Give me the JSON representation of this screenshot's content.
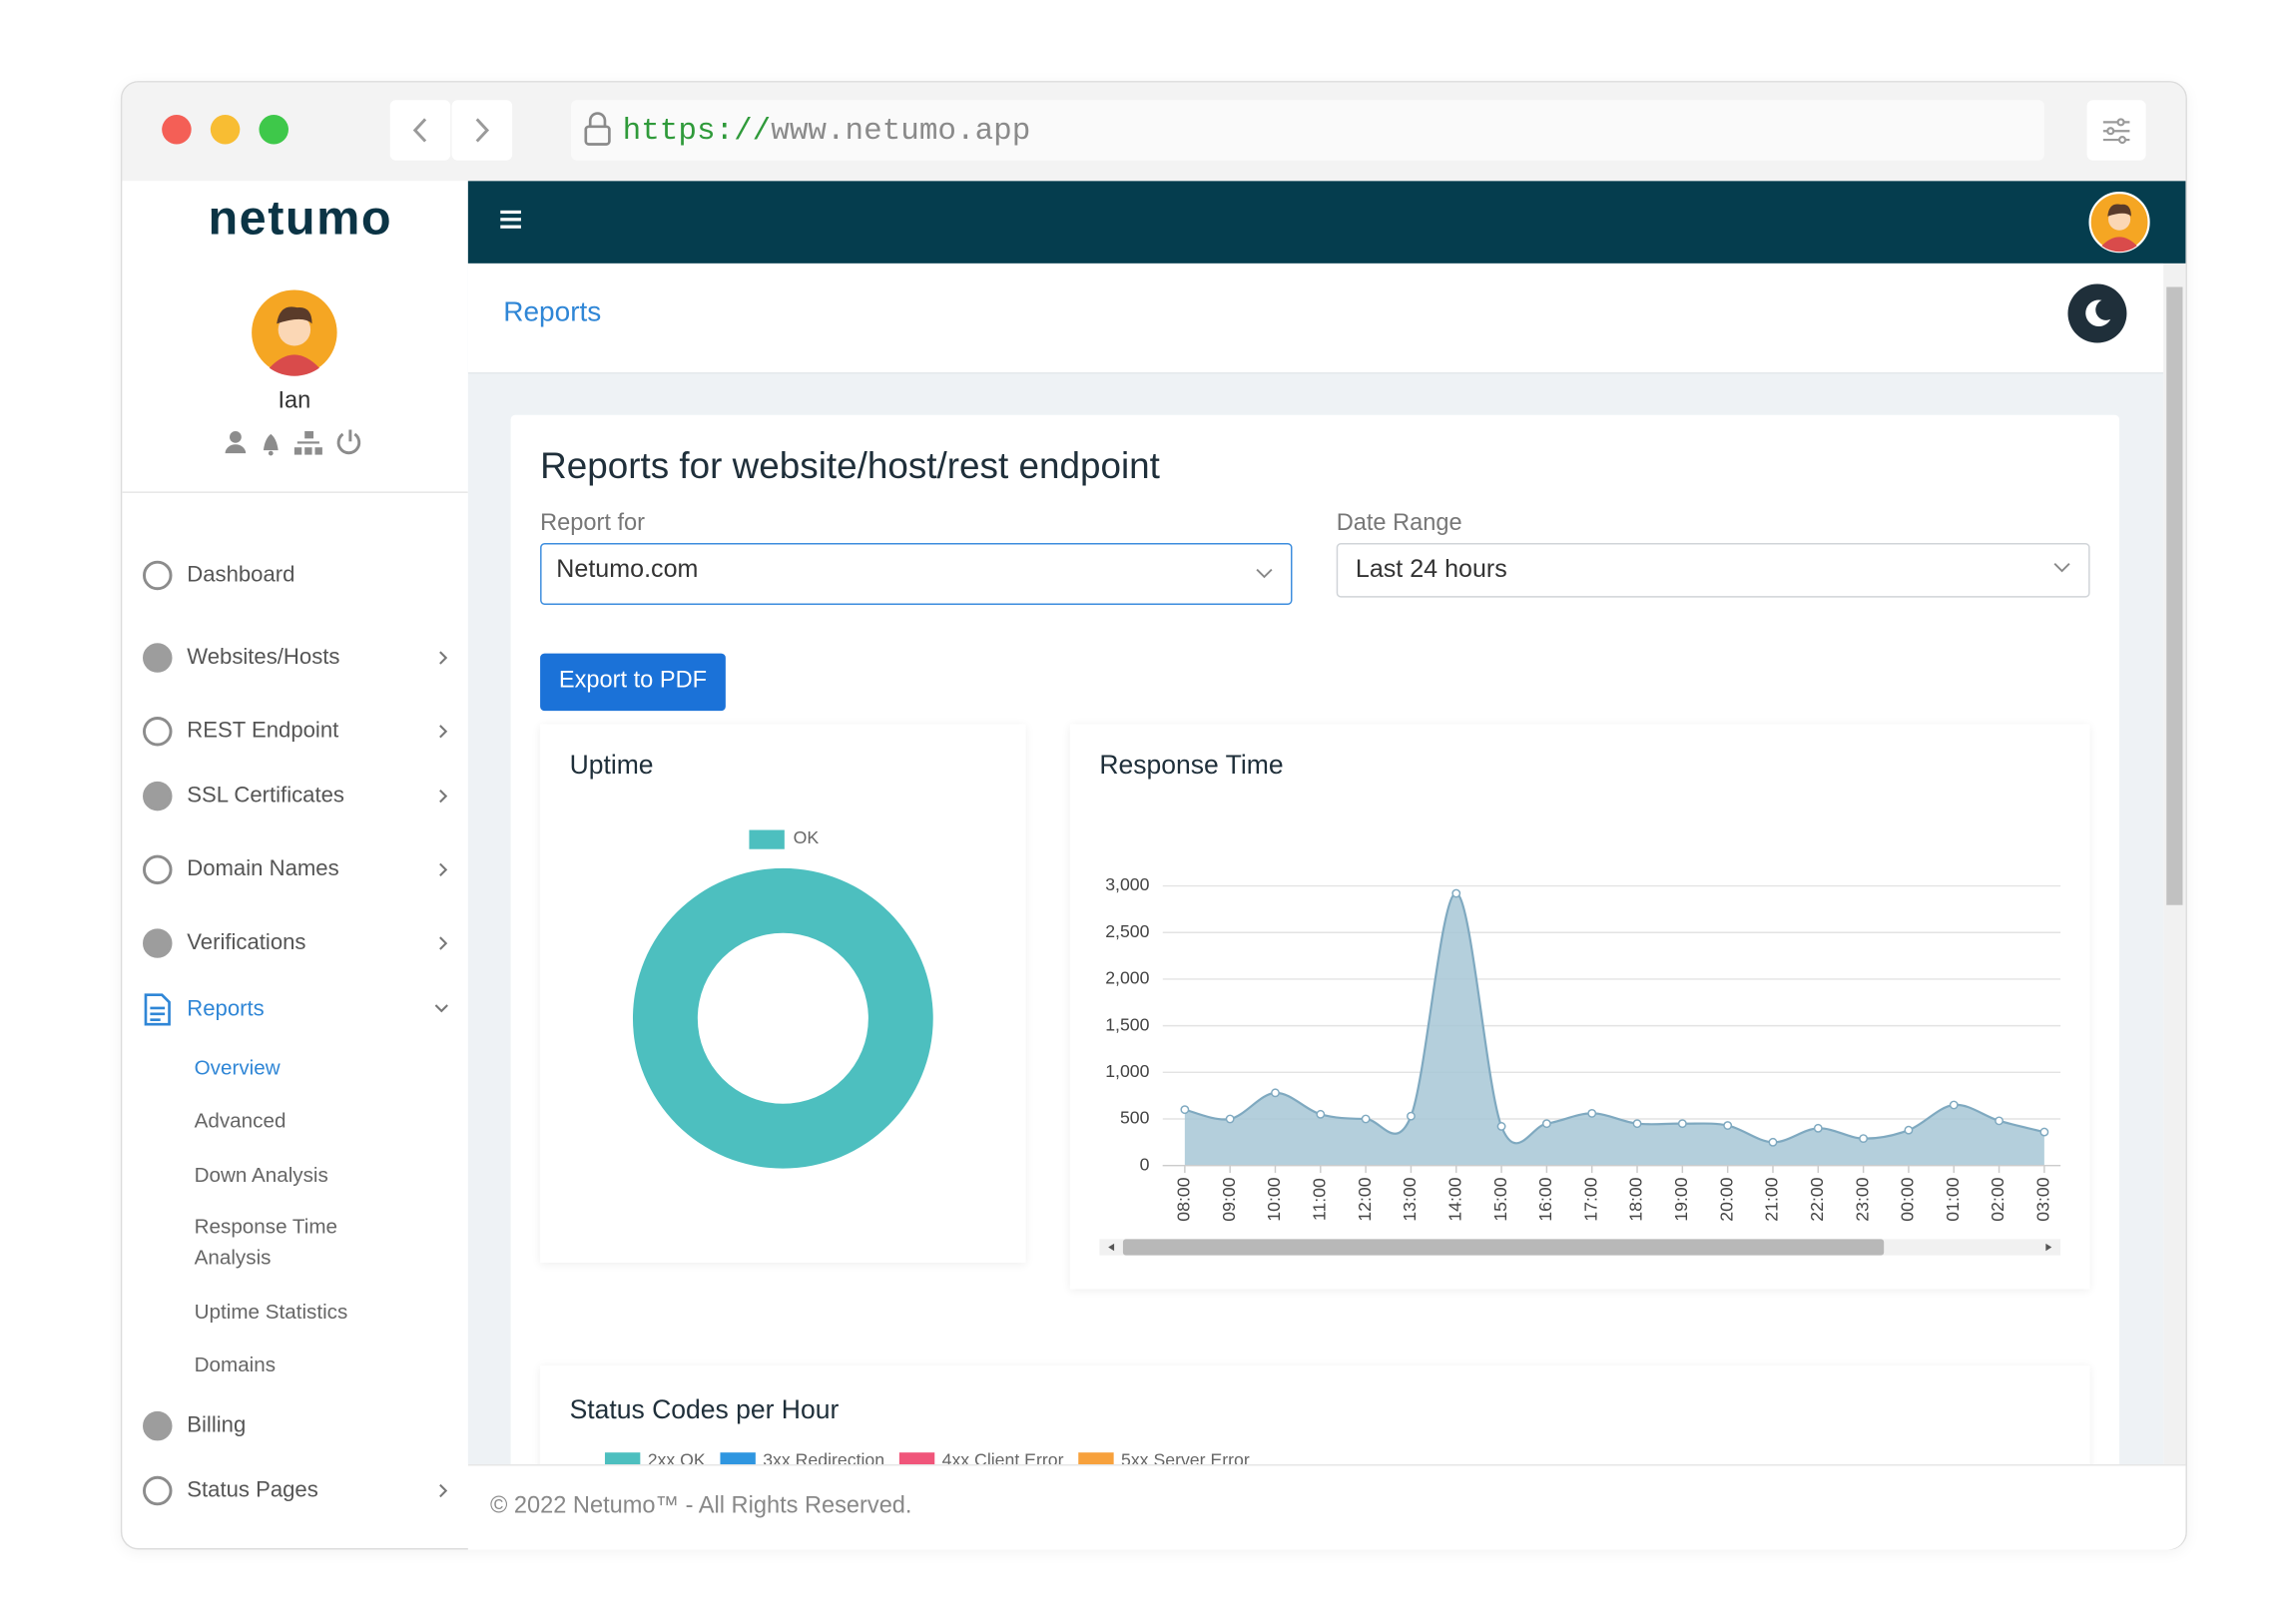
{
  "browser": {
    "url_scheme": "https://",
    "url_host": "www.netumo.app"
  },
  "brand": "netumo",
  "user": {
    "name": "Ian"
  },
  "nav": [
    {
      "label": "Dashboard"
    },
    {
      "label": "Websites/Hosts",
      "submenu": true
    },
    {
      "label": "REST Endpoint",
      "submenu": true
    },
    {
      "label": "SSL Certificates",
      "submenu": true
    },
    {
      "label": "Domain Names",
      "submenu": true
    },
    {
      "label": "Verifications",
      "submenu": true
    },
    {
      "label": "Reports",
      "submenu": true,
      "active": true,
      "children": [
        "Overview",
        "Advanced",
        "Down Analysis",
        "Response Time Analysis",
        "Uptime Statistics",
        "Domains"
      ]
    },
    {
      "label": "Billing"
    },
    {
      "label": "Status Pages",
      "submenu": true
    }
  ],
  "breadcrumb": "Reports",
  "card": {
    "title": "Reports for website/host/rest endpoint",
    "report_for_label": "Report for",
    "report_for_value": "Netumo.com",
    "date_range_label": "Date Range",
    "date_range_value": "Last 24 hours",
    "export_button": "Export to PDF"
  },
  "footer": "© 2022 Netumo™ - All Rights Reserved.",
  "chart_data": [
    {
      "type": "pie",
      "title": "Uptime",
      "donut": true,
      "categories": [
        "OK"
      ],
      "values": [
        100
      ],
      "colors": [
        "#4dbfbf"
      ]
    },
    {
      "type": "area",
      "title": "Response Time",
      "categories": [
        "08:00",
        "09:00",
        "10:00",
        "11:00",
        "12:00",
        "13:00",
        "14:00",
        "15:00",
        "16:00",
        "17:00",
        "18:00",
        "19:00",
        "20:00",
        "21:00",
        "22:00",
        "23:00",
        "00:00",
        "01:00",
        "02:00",
        "03:00"
      ],
      "values": [
        600,
        500,
        780,
        550,
        500,
        530,
        2920,
        420,
        450,
        560,
        450,
        450,
        430,
        250,
        400,
        290,
        380,
        650,
        480,
        360
      ],
      "color": "#7fa9c0",
      "fill": "#a7c7d6",
      "ylim": [
        0,
        3000
      ],
      "yticks": [
        0,
        500,
        {
          "value": 1000,
          "label": "1,000"
        },
        {
          "value": 1500,
          "label": "1,500"
        },
        {
          "value": 2000,
          "label": "2,000"
        },
        {
          "value": 2500,
          "label": "2,500"
        },
        {
          "value": 3000,
          "label": "3,000"
        }
      ],
      "grid": true
    },
    {
      "type": "bar",
      "title": "Status Codes per Hour",
      "series": [
        {
          "name": "2xx OK",
          "color": "#4dbfbf"
        },
        {
          "name": "3xx Redirection",
          "color": "#2f96e0"
        },
        {
          "name": "4xx Client Error",
          "color": "#f0557a"
        },
        {
          "name": "5xx Server Error",
          "color": "#f7a13c"
        }
      ]
    }
  ]
}
